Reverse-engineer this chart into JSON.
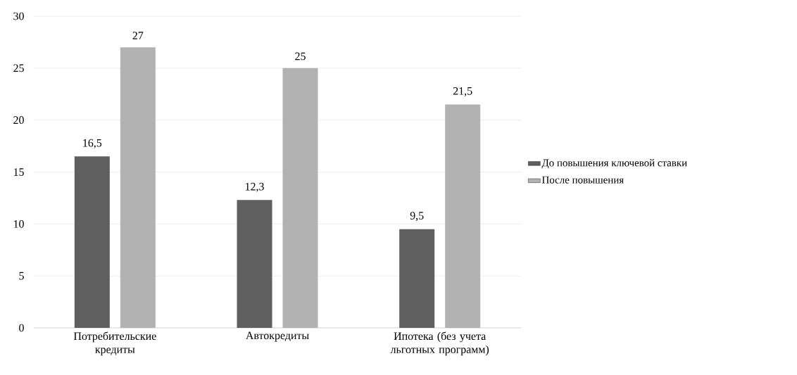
{
  "chart_data": {
    "type": "bar",
    "categories": [
      "Потребительские кредиты",
      "Автокредиты",
      "Ипотека (без учета льготных программ)"
    ],
    "series": [
      {
        "name": "До повышения ключевой ставки",
        "color": "#5f5f5f",
        "values": [
          16.5,
          12.3,
          9.5
        ],
        "value_labels": [
          "16,5",
          "12,3",
          "9,5"
        ]
      },
      {
        "name": "После повышения",
        "color": "#b2b2b2",
        "values": [
          27,
          25,
          21.5
        ],
        "value_labels": [
          "27",
          "25",
          "21,5"
        ]
      }
    ],
    "ylim": [
      0,
      30
    ],
    "yticks": [
      0,
      5,
      10,
      15,
      20,
      25,
      30
    ],
    "grid": "y",
    "legend": "right"
  }
}
